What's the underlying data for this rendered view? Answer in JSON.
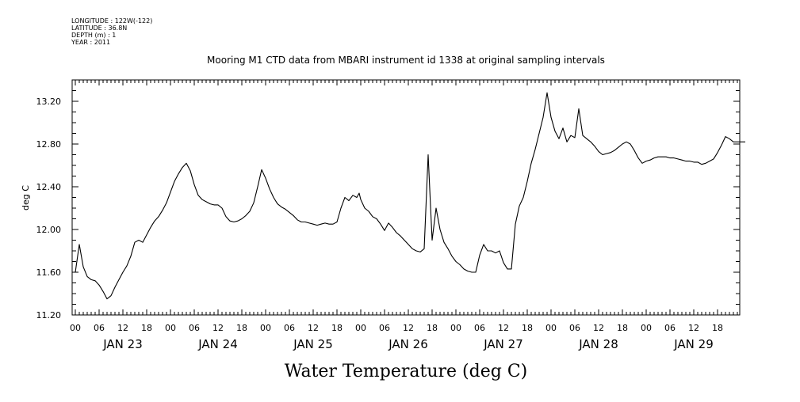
{
  "header": {
    "longitude": "LONGITUDE : 122W(-122)",
    "latitude": "LATITUDE : 36.8N",
    "depth": "DEPTH (m) : 1",
    "year": "YEAR : 2011"
  },
  "chart_data": {
    "type": "line",
    "title": "Mooring M1 CTD data from MBARI instrument id 1338 at original sampling intervals",
    "xlabel": "Water Temperature (deg C)",
    "ylabel": "deg C",
    "ylim": [
      11.2,
      13.4
    ],
    "yticks": [
      11.2,
      11.6,
      12.0,
      12.4,
      12.8,
      13.2
    ],
    "ytick_labels": [
      "11.20",
      "11.60",
      "12.00",
      "12.40",
      "12.80",
      "13.20"
    ],
    "xlim_hours": [
      0,
      170
    ],
    "xtick_labels": [
      "00",
      "06",
      "12",
      "18",
      "00",
      "06",
      "12",
      "18",
      "00",
      "06",
      "12",
      "18",
      "00",
      "06",
      "12",
      "18",
      "00",
      "06",
      "12",
      "18",
      "00",
      "06",
      "12",
      "18",
      "00",
      "06",
      "12",
      "18"
    ],
    "day_labels": [
      "JAN 23",
      "JAN 24",
      "JAN 25",
      "JAN 26",
      "JAN 27",
      "JAN 28",
      "JAN 29"
    ],
    "grid": false,
    "series": [
      {
        "x": [
          0,
          1,
          2,
          3,
          4,
          5,
          6,
          7,
          8,
          9,
          10,
          11,
          12,
          13,
          14,
          15,
          16,
          17,
          18,
          19,
          20,
          21,
          22,
          23,
          24,
          25,
          26,
          27,
          28,
          29,
          30,
          31,
          32,
          33,
          34,
          35,
          36,
          37,
          38,
          39,
          40,
          41,
          42,
          43,
          44,
          45,
          46,
          47,
          48,
          49,
          50,
          51,
          52,
          53,
          54,
          55,
          56,
          57,
          58,
          59,
          60,
          61,
          62,
          63,
          64,
          65,
          66,
          67,
          68,
          69,
          70,
          71,
          71.6,
          72,
          73,
          74,
          75,
          76,
          77,
          78,
          79,
          80,
          81,
          82,
          83,
          84,
          85,
          86,
          87,
          88,
          89,
          90,
          91,
          92,
          93,
          94,
          95,
          96,
          97,
          98,
          99,
          100,
          101,
          102,
          103,
          104,
          105,
          106,
          107,
          108,
          109,
          110,
          111,
          112,
          113,
          114,
          115,
          116,
          117,
          118,
          119,
          120,
          121,
          122,
          123,
          124,
          125,
          126,
          127,
          128,
          129,
          130,
          131,
          132,
          133,
          134,
          135,
          136,
          137,
          138,
          139,
          140,
          141,
          142,
          143,
          144,
          145,
          146,
          147,
          148,
          149,
          150,
          151,
          152,
          153,
          154,
          155,
          156,
          157,
          158,
          159,
          160,
          161,
          162,
          163,
          164,
          165,
          166,
          167,
          168,
          169
        ],
        "y": [
          11.6,
          11.86,
          11.65,
          11.56,
          11.53,
          11.52,
          11.48,
          11.42,
          11.35,
          11.38,
          11.46,
          11.53,
          11.6,
          11.66,
          11.75,
          11.88,
          11.9,
          11.88,
          11.95,
          12.02,
          12.08,
          12.12,
          12.18,
          12.25,
          12.35,
          12.45,
          12.52,
          12.58,
          12.62,
          12.55,
          12.42,
          12.32,
          12.28,
          12.26,
          12.24,
          12.23,
          12.23,
          12.2,
          12.12,
          12.08,
          12.07,
          12.08,
          12.1,
          12.13,
          12.17,
          12.25,
          12.4,
          12.56,
          12.48,
          12.38,
          12.3,
          12.24,
          12.21,
          12.19,
          12.16,
          12.13,
          12.09,
          12.07,
          12.07,
          12.06,
          12.05,
          12.04,
          12.05,
          12.06,
          12.05,
          12.05,
          12.07,
          12.2,
          12.3,
          12.27,
          12.32,
          12.3,
          12.34,
          12.28,
          12.2,
          12.17,
          12.12,
          12.1,
          12.05,
          11.99,
          12.06,
          12.02,
          11.97,
          11.94,
          11.9,
          11.86,
          11.82,
          11.8,
          11.79,
          11.82,
          12.7,
          11.9,
          12.2,
          12.0,
          11.88,
          11.82,
          11.75,
          11.7,
          11.67,
          11.63,
          11.61,
          11.6,
          11.6,
          11.76,
          11.86,
          11.8,
          11.8,
          11.78,
          11.8,
          11.69,
          11.63,
          11.63,
          12.05,
          12.22,
          12.3,
          12.45,
          12.62,
          12.75,
          12.9,
          13.05,
          13.28,
          13.05,
          12.92,
          12.85,
          12.95,
          12.82,
          12.88,
          12.86,
          13.13,
          12.88,
          12.85,
          12.82,
          12.78,
          12.73,
          12.7,
          12.71,
          12.72,
          12.74,
          12.77,
          12.8,
          12.82,
          12.8,
          12.74,
          12.67,
          12.62,
          12.64,
          12.65,
          12.67,
          12.68,
          12.68,
          12.68,
          12.67,
          12.67,
          12.66,
          12.65,
          12.64,
          12.64,
          12.63,
          12.63,
          12.61,
          12.62,
          12.64,
          12.66,
          12.72,
          12.79,
          12.87,
          12.85,
          12.82,
          12.82,
          12.82,
          12.82
        ]
      }
    ]
  }
}
